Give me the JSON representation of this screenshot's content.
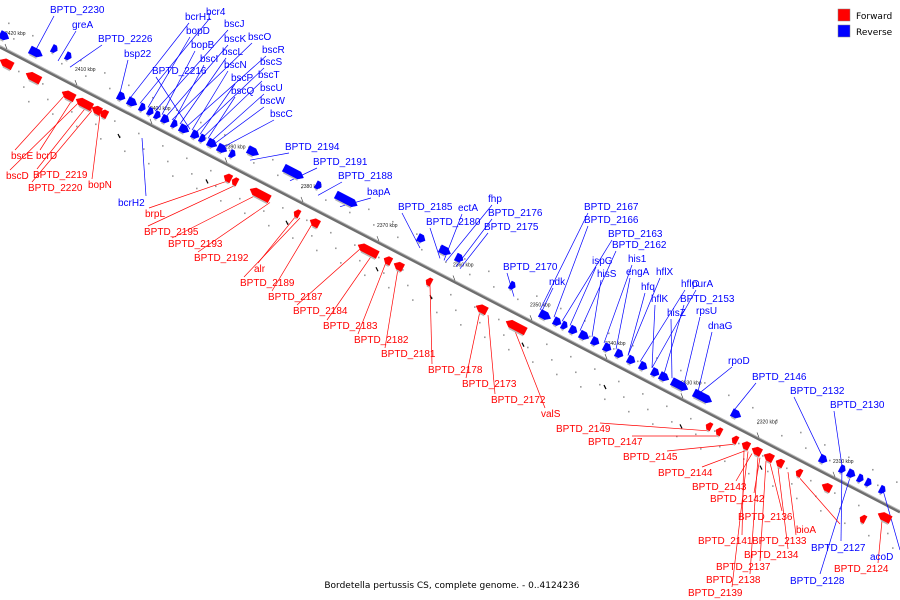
{
  "title": "Bordetella pertussis CS, complete genome. - 0..4124236",
  "colors": {
    "forward": "#ff0000",
    "reverse": "#0000ff",
    "backbone": "#808080"
  },
  "legend": [
    {
      "label": "Forward",
      "strand": "forward"
    },
    {
      "label": "Reverse",
      "strand": "reverse"
    }
  ],
  "ticks": [
    "2420 kbp",
    "2410 kbp",
    "2400 kbp",
    "2390 kbp",
    "2380 kbp",
    "2370 kbp",
    "2360 kbp",
    "2350 kbp",
    "2340 kbp",
    "2330 kbp",
    "2320 kbp",
    "2310 kbp"
  ],
  "reverse_labels": [
    "BPTD_2230",
    "greA",
    "BPTD_2226",
    "bsp22",
    "bcrH1",
    "bcr4",
    "bopD",
    "bscJ",
    "bopB",
    "bscK",
    "bscO",
    "bscI",
    "bscL",
    "bscR",
    "BPTD_2216",
    "bscN",
    "bscS",
    "bscP",
    "bscT",
    "bscQ",
    "bscU",
    "bscW",
    "bscC",
    "BPTD_2194",
    "BPTD_2191",
    "BPTD_2188",
    "bapA",
    "BPTD_2185",
    "fhp",
    "ectA",
    "BPTD_2180",
    "BPTD_2176",
    "BPTD_2175",
    "BPTD_2167",
    "BPTD_2166",
    "BPTD_2163",
    "ispG",
    "BPTD_2162",
    "hisS",
    "his1",
    "engA",
    "hflX",
    "hfq",
    "hflC",
    "purA",
    "hflK",
    "BPTD_2153",
    "hisZ",
    "rpsU",
    "dnaG",
    "BPTD_2170",
    "ndk",
    "rpoD",
    "BPTD_2146",
    "BPTD_2132",
    "BPTD_2130",
    "bcrH2",
    "BPTD_2127",
    "BPTD_2128",
    "acoD"
  ],
  "forward_labels": [
    "bscE",
    "bcrD",
    "bscD",
    "BPTD_2219",
    "BPTD_2220",
    "bopN",
    "brpL",
    "BPTD_2195",
    "BPTD_2193",
    "BPTD_2192",
    "alr",
    "BPTD_2189",
    "BPTD_2187",
    "BPTD_2184",
    "BPTD_2183",
    "BPTD_2182",
    "BPTD_2181",
    "BPTD_2178",
    "BPTD_2173",
    "BPTD_2172",
    "valS",
    "BPTD_2149",
    "BPTD_2147",
    "BPTD_2145",
    "BPTD_2144",
    "BPTD_2143",
    "BPTD_2142",
    "BPTD_2136",
    "bioA",
    "BPTD_2141",
    "BPTD_2133",
    "BPTD_2134",
    "BPTD_2137",
    "BPTD_2138",
    "BPTD_2139",
    "BPTD_2124"
  ]
}
